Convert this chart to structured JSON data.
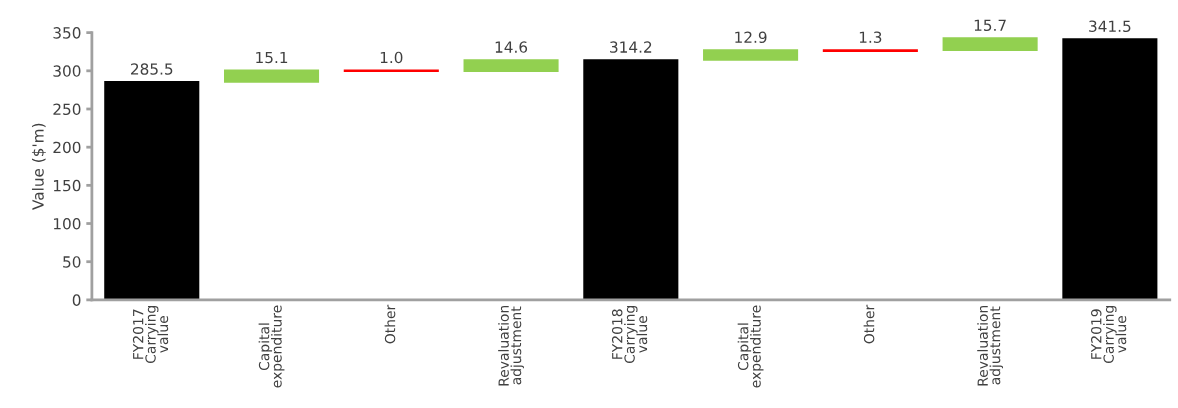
{
  "chart_data": {
    "type": "bar",
    "ylabel": "Value ($'m)",
    "categories": [
      "FY2017\nCarrying\nvalue",
      "Capital\nexpenditure",
      "Other",
      "Revaluation\nadjustment",
      "FY2018\nCarrying\nvalue",
      "Capital\nexpenditure",
      "Other",
      "Revaluation\nadjustment",
      "FY2019\nCarrying\nvalue"
    ],
    "values": [
      285.5,
      15.1,
      1.0,
      14.6,
      314.2,
      12.9,
      1.3,
      15.7,
      341.5
    ],
    "base": [
      0,
      285.5,
      299.6,
      299.6,
      0,
      314.2,
      325.8,
      327.1,
      0
    ],
    "colors": [
      "#000000",
      "#92d050",
      "#ff0000",
      "#92d050",
      "#000000",
      "#92d050",
      "#ff0000",
      "#92d050",
      "#000000"
    ],
    "value_labels": [
      "285.5",
      "15.1",
      "1.0",
      "14.6",
      "314.2",
      "12.9",
      "1.3",
      "15.7",
      "341.5"
    ],
    "ylim": [
      0,
      350
    ],
    "yticks": [
      0,
      50,
      100,
      150,
      200,
      250,
      300,
      350
    ],
    "grid": false
  }
}
